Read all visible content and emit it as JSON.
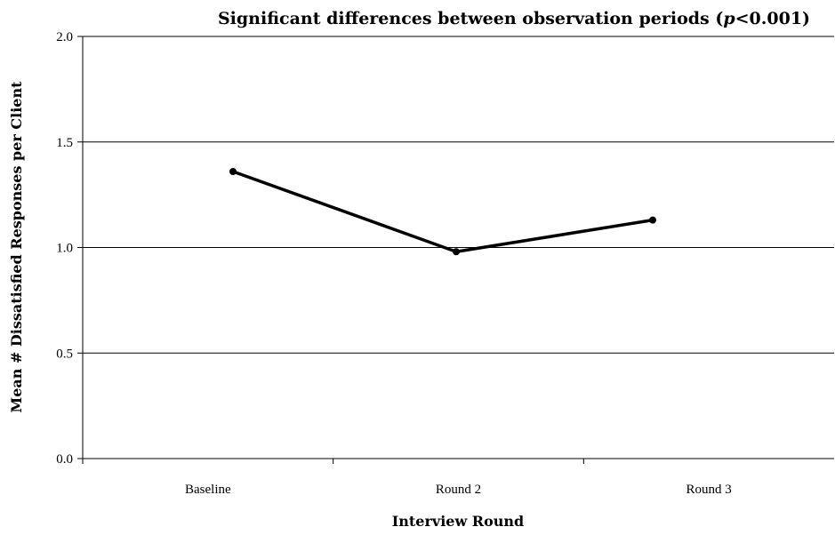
{
  "chart_data": {
    "type": "line",
    "title": {
      "before": "Significant differences between observation periods (",
      "italic": "p",
      "after": "<0.001)"
    },
    "xlabel": "Interview Round",
    "ylabel": "Mean # Dissatisfied Responses per Client",
    "categories": [
      "Baseline",
      "Round 2",
      "Round 3"
    ],
    "series": [
      {
        "values": [
          1.36,
          0.98,
          1.13
        ]
      }
    ],
    "ylim": [
      0,
      2.0
    ],
    "yticks": [
      "0.0",
      "0.5",
      "1.0",
      "1.5",
      "2.0"
    ],
    "grid": true,
    "legend": "none"
  }
}
